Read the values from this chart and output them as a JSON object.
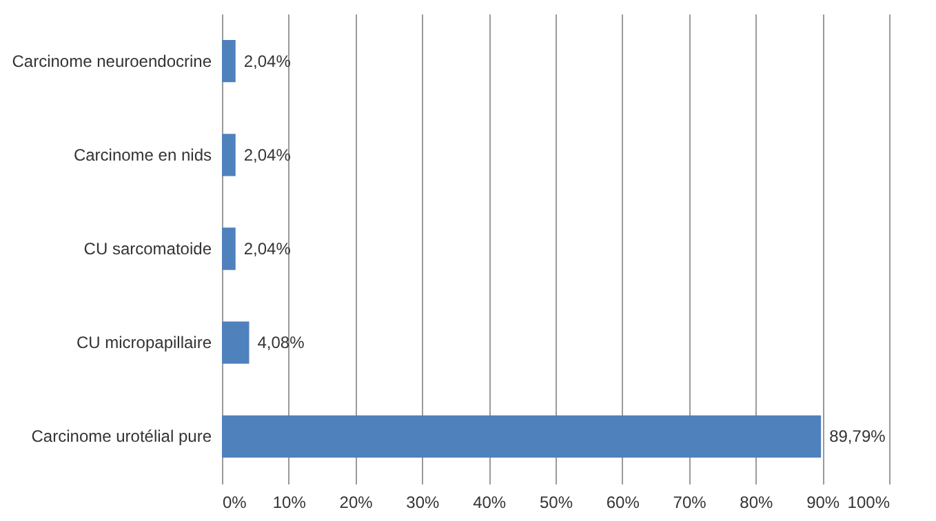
{
  "chart_data": {
    "type": "bar",
    "orientation": "horizontal",
    "categories": [
      "Carcinome neuroendocrine",
      "Carcinome en nids",
      "CU sarcomatoide",
      "CU micropapillaire",
      "Carcinome urotélial pure"
    ],
    "values": [
      2.04,
      2.04,
      2.04,
      4.08,
      89.79
    ],
    "value_labels": [
      "2,04%",
      "2,04%",
      "2,04%",
      "4,08%",
      "89,79%"
    ],
    "color": "#4f81bd",
    "xlim": [
      0,
      100
    ],
    "xticks": [
      {
        "value": 0,
        "label": "0%"
      },
      {
        "value": 10,
        "label": "10%"
      },
      {
        "value": 20,
        "label": "20%"
      },
      {
        "value": 30,
        "label": "30%"
      },
      {
        "value": 40,
        "label": "40%"
      },
      {
        "value": 50,
        "label": "50%"
      },
      {
        "value": 60,
        "label": "60%"
      },
      {
        "value": 70,
        "label": "70%"
      },
      {
        "value": 80,
        "label": "80%"
      },
      {
        "value": 90,
        "label": "90%"
      },
      {
        "value": 100,
        "label": "100%"
      }
    ],
    "grid": "x"
  }
}
